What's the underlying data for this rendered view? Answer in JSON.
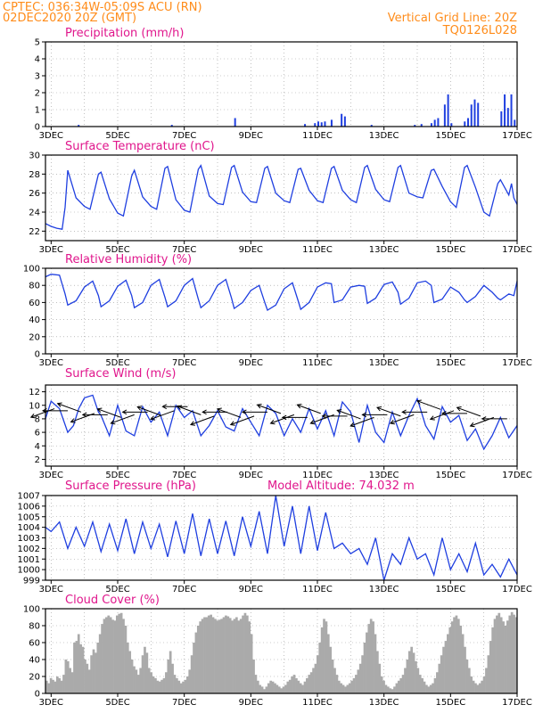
{
  "header": {
    "line1": "CPTEC:   036:34W-05:09S   ACU (RN)",
    "line2": "02DEC2020 20Z (GMT)",
    "grid_note": "Vertical Grid Line: 20Z",
    "code": "TQ0126L028"
  },
  "colors": {
    "header": "#ff8c1a",
    "title": "#e0168c",
    "series": "#1f3fe0",
    "cloud": "#aaaaaa",
    "grid": "#999999"
  },
  "x_axis_ticks": [
    "3DEC",
    "5DEC",
    "7DEC",
    "9DEC",
    "11DEC",
    "13DEC",
    "15DEC",
    "17DEC"
  ],
  "chart_data": [
    {
      "type": "bar",
      "title": "Precipitation (mm/h)",
      "ylim": [
        0,
        5
      ],
      "yticks": [
        0,
        1,
        2,
        3,
        4,
        5
      ],
      "grid": true,
      "x_unit": "days since 02DEC2020 00Z",
      "x": [
        3.8,
        6.6,
        8.5,
        10.6,
        10.9,
        11.0,
        11.1,
        11.2,
        11.4,
        11.7,
        11.8,
        12.6,
        13.9,
        14.1,
        14.4,
        14.5,
        14.6,
        14.8,
        14.9,
        15.0,
        15.4,
        15.5,
        15.6,
        15.7,
        15.8,
        16.5,
        16.6,
        16.7,
        16.8,
        16.9
      ],
      "values": [
        0.1,
        0.1,
        0.5,
        0.15,
        0.2,
        0.3,
        0.25,
        0.3,
        0.4,
        0.75,
        0.6,
        0.1,
        0.1,
        0.15,
        0.2,
        0.4,
        0.5,
        1.3,
        1.9,
        0.2,
        0.3,
        0.5,
        1.3,
        1.6,
        1.4,
        0.9,
        1.9,
        1.1,
        1.9,
        0.4
      ]
    },
    {
      "type": "line",
      "title": "Surface Temperature (nC)",
      "ylim": [
        21,
        30
      ],
      "yticks": [
        22,
        24,
        26,
        28,
        30
      ],
      "grid": true,
      "series": [
        {
          "x": [
            2.83,
            3.0,
            3.17,
            3.33,
            3.42,
            3.5,
            3.75,
            4.0,
            4.17,
            4.42,
            4.5,
            4.75,
            5.0,
            5.17,
            5.42,
            5.5,
            5.75,
            6.0,
            6.17,
            6.42,
            6.5,
            6.75,
            7.0,
            7.17,
            7.42,
            7.5,
            7.75,
            8.0,
            8.17,
            8.42,
            8.5,
            8.75,
            9.0,
            9.17,
            9.42,
            9.5,
            9.75,
            10.0,
            10.17,
            10.42,
            10.5,
            10.75,
            11.0,
            11.17,
            11.42,
            11.5,
            11.75,
            12.0,
            12.17,
            12.42,
            12.5,
            12.75,
            13.0,
            13.17,
            13.42,
            13.5,
            13.75,
            14.0,
            14.17,
            14.42,
            14.5,
            14.75,
            15.0,
            15.17,
            15.42,
            15.5,
            15.75,
            16.0,
            16.17,
            16.42,
            16.5,
            16.75,
            16.83,
            16.9,
            17.0
          ],
          "values": [
            22.8,
            22.5,
            22.3,
            22.2,
            24.5,
            28.4,
            25.5,
            24.6,
            24.3,
            28.0,
            28.2,
            25.4,
            23.9,
            23.6,
            27.8,
            28.4,
            25.6,
            24.6,
            24.3,
            28.6,
            28.8,
            25.3,
            24.2,
            24.0,
            28.5,
            28.9,
            25.7,
            24.9,
            24.8,
            28.7,
            28.9,
            26.1,
            25.1,
            25.0,
            28.6,
            28.8,
            26.0,
            25.2,
            25.0,
            28.5,
            28.6,
            26.3,
            25.2,
            25.0,
            28.6,
            28.8,
            26.3,
            25.3,
            25.0,
            28.7,
            28.9,
            26.4,
            25.3,
            25.1,
            28.7,
            28.9,
            26.0,
            25.6,
            25.5,
            28.4,
            28.5,
            26.7,
            25.1,
            24.5,
            28.7,
            28.9,
            26.6,
            24.0,
            23.6,
            27.0,
            27.4,
            25.8,
            27.0,
            25.5,
            24.8
          ]
        }
      ]
    },
    {
      "type": "line",
      "title": "Relative Humidity (%)",
      "ylim": [
        0,
        100
      ],
      "yticks": [
        0,
        20,
        40,
        60,
        80,
        100
      ],
      "grid": true,
      "series": [
        {
          "x": [
            2.83,
            3.0,
            3.25,
            3.42,
            3.5,
            3.75,
            4.0,
            4.25,
            4.42,
            4.5,
            4.75,
            5.0,
            5.25,
            5.42,
            5.5,
            5.75,
            6.0,
            6.25,
            6.42,
            6.5,
            6.75,
            7.0,
            7.25,
            7.42,
            7.5,
            7.75,
            8.0,
            8.25,
            8.42,
            8.5,
            8.75,
            9.0,
            9.25,
            9.42,
            9.5,
            9.75,
            10.0,
            10.25,
            10.42,
            10.5,
            10.75,
            11.0,
            11.25,
            11.42,
            11.5,
            11.75,
            12.0,
            12.25,
            12.42,
            12.5,
            12.75,
            13.0,
            13.25,
            13.42,
            13.5,
            13.75,
            14.0,
            14.25,
            14.42,
            14.5,
            14.75,
            15.0,
            15.25,
            15.42,
            15.5,
            15.75,
            16.0,
            16.25,
            16.42,
            16.5,
            16.75,
            16.9,
            17.0
          ],
          "values": [
            90,
            93,
            92,
            70,
            57,
            62,
            78,
            85,
            68,
            55,
            62,
            79,
            86,
            68,
            54,
            60,
            80,
            87,
            66,
            55,
            62,
            80,
            88,
            64,
            54,
            62,
            80,
            87,
            65,
            53,
            60,
            74,
            80,
            60,
            51,
            57,
            76,
            83,
            62,
            52,
            60,
            78,
            83,
            82,
            60,
            63,
            78,
            80,
            79,
            59,
            65,
            81,
            84,
            72,
            58,
            65,
            83,
            85,
            80,
            60,
            64,
            78,
            72,
            63,
            60,
            67,
            80,
            72,
            65,
            63,
            70,
            68,
            85
          ]
        }
      ]
    },
    {
      "type": "line",
      "title": "Surface Wind (m/s)",
      "ylim": [
        1,
        13
      ],
      "yticks": [
        2,
        4,
        6,
        8,
        10,
        12
      ],
      "grid": true,
      "series": [
        {
          "x": [
            2.83,
            3.0,
            3.25,
            3.5,
            3.67,
            3.83,
            4.0,
            4.25,
            4.42,
            4.5,
            4.75,
            5.0,
            5.25,
            5.5,
            5.75,
            6.0,
            6.25,
            6.5,
            6.75,
            7.0,
            7.25,
            7.5,
            7.75,
            8.0,
            8.25,
            8.5,
            8.75,
            9.0,
            9.25,
            9.5,
            9.75,
            10.0,
            10.25,
            10.5,
            10.75,
            11.0,
            11.25,
            11.5,
            11.75,
            12.0,
            12.25,
            12.5,
            12.75,
            13.0,
            13.25,
            13.5,
            13.75,
            14.0,
            14.25,
            14.5,
            14.75,
            15.0,
            15.25,
            15.5,
            15.75,
            16.0,
            16.25,
            16.5,
            16.75,
            17.0
          ],
          "values": [
            8,
            10.6,
            9.5,
            6,
            7,
            9.5,
            11.1,
            11.5,
            9,
            8.5,
            5.5,
            10,
            6.2,
            5.5,
            9.8,
            7.5,
            9,
            5.5,
            10,
            8.2,
            9.2,
            5.5,
            7,
            9.2,
            6.8,
            6.2,
            9.5,
            7.5,
            5.5,
            10,
            8.8,
            5.5,
            8,
            6,
            9.5,
            6.5,
            9.2,
            5.5,
            10.5,
            9,
            4.5,
            10,
            6,
            4.5,
            9,
            5.5,
            8.5,
            11,
            7,
            5,
            9.8,
            7.5,
            8.5,
            4.8,
            6.5,
            3.5,
            5.5,
            8.2,
            5.2,
            7
          ]
        }
      ],
      "wind_arrows_direction": "from east",
      "wind_arrow_days": [
        3.1,
        3.5,
        3.9,
        4.3,
        4.7,
        5.1,
        5.5,
        5.9,
        6.3,
        6.7,
        7.1,
        7.5,
        7.9,
        8.3,
        8.7,
        9.1,
        9.5,
        9.9,
        10.3,
        10.7,
        11.1,
        11.5,
        11.9,
        12.3,
        12.7,
        13.1,
        13.5,
        13.9,
        14.3,
        14.7,
        15.1,
        15.5,
        15.9,
        16.3,
        16.7
      ],
      "wind_arrow_values": [
        9.5,
        9.2,
        9.0,
        8.8,
        8.6,
        8.2,
        8.6,
        9.0,
        8.5,
        9.2,
        9.8,
        8.6,
        8.4,
        9.0,
        8.2,
        8.4,
        9.0,
        8.8,
        8.6,
        8.2,
        8.8,
        8.6,
        8.4,
        8.0,
        8.2,
        8.6,
        8.4,
        8.6,
        9.0,
        9.4,
        9.2,
        8.8,
        8.4,
        8.2,
        8.0
      ]
    },
    {
      "type": "line",
      "title": "Surface Pressure (hPa)",
      "annotation": "Model Altitude: 74.032 m",
      "ylim": [
        999,
        1007
      ],
      "yticks": [
        999,
        1000,
        1001,
        1002,
        1003,
        1004,
        1005,
        1006,
        1007
      ],
      "grid": true,
      "series": [
        {
          "x": [
            2.83,
            3.0,
            3.25,
            3.5,
            3.75,
            4.0,
            4.25,
            4.5,
            4.75,
            5.0,
            5.25,
            5.5,
            5.75,
            6.0,
            6.25,
            6.5,
            6.75,
            7.0,
            7.25,
            7.5,
            7.75,
            8.0,
            8.25,
            8.5,
            8.75,
            9.0,
            9.25,
            9.5,
            9.75,
            10.0,
            10.25,
            10.5,
            10.75,
            11.0,
            11.25,
            11.5,
            11.75,
            12.0,
            12.25,
            12.5,
            12.75,
            13.0,
            13.25,
            13.5,
            13.75,
            14.0,
            14.25,
            14.5,
            14.75,
            15.0,
            15.25,
            15.5,
            15.75,
            16.0,
            16.25,
            16.5,
            16.75,
            17.0
          ],
          "values": [
            1004,
            1003.6,
            1004.5,
            1002,
            1004,
            1002.2,
            1004.5,
            1001.7,
            1004.3,
            1001.8,
            1004.8,
            1001.5,
            1004.5,
            1002,
            1004.3,
            1001.2,
            1004.6,
            1001.5,
            1005.3,
            1001.3,
            1004.8,
            1001.5,
            1004.6,
            1001.3,
            1005,
            1002.2,
            1005.5,
            1001.5,
            1007,
            1002.2,
            1006,
            1001.5,
            1006,
            1001.8,
            1005.4,
            1002,
            1002.5,
            1001.5,
            1002,
            1000.5,
            1003,
            999,
            1001.5,
            1000.5,
            1003,
            1001,
            1001.5,
            999.5,
            1003,
            1000,
            1001.5,
            999.8,
            1002.5,
            999.5,
            1000.5,
            999.3,
            1001,
            999.5
          ]
        }
      ]
    },
    {
      "type": "bar",
      "title": "Cloud Cover (%)",
      "ylim": [
        0,
        100
      ],
      "yticks": [
        0,
        20,
        40,
        60,
        80,
        100
      ],
      "grid": true,
      "values": [
        15,
        12,
        18,
        16,
        14,
        20,
        18,
        15,
        22,
        40,
        38,
        30,
        25,
        60,
        62,
        70,
        58,
        55,
        40,
        35,
        28,
        45,
        52,
        48,
        60,
        70,
        82,
        88,
        90,
        92,
        90,
        87,
        86,
        92,
        94,
        95,
        88,
        80,
        60,
        50,
        40,
        32,
        28,
        22,
        30,
        45,
        55,
        48,
        30,
        25,
        20,
        18,
        15,
        14,
        16,
        18,
        25,
        40,
        50,
        35,
        22,
        18,
        15,
        12,
        14,
        16,
        20,
        28,
        45,
        60,
        72,
        80,
        85,
        88,
        90,
        90,
        92,
        93,
        90,
        88,
        86,
        87,
        88,
        90,
        92,
        91,
        89,
        86,
        88,
        90,
        86,
        88,
        92,
        95,
        92,
        85,
        70,
        40,
        22,
        15,
        10,
        8,
        5,
        8,
        12,
        15,
        14,
        12,
        10,
        8,
        6,
        8,
        10,
        14,
        16,
        20,
        22,
        18,
        15,
        12,
        10,
        14,
        18,
        22,
        25,
        30,
        35,
        45,
        60,
        78,
        88,
        85,
        70,
        55,
        40,
        30,
        22,
        15,
        12,
        10,
        8,
        10,
        12,
        15,
        18,
        22,
        28,
        35,
        45,
        60,
        72,
        82,
        88,
        85,
        70,
        50,
        35,
        20,
        15,
        10,
        8,
        6,
        5,
        8,
        12,
        15,
        18,
        22,
        30,
        40,
        50,
        55,
        48,
        38,
        30,
        22,
        18,
        14,
        10,
        8,
        10,
        12,
        18,
        25,
        35,
        45,
        55,
        62,
        70,
        78,
        85,
        90,
        92,
        88,
        80,
        70,
        55,
        40,
        30,
        20,
        15,
        12,
        10,
        12,
        15,
        20,
        30,
        45,
        62,
        78,
        88,
        92,
        95,
        90,
        85,
        80,
        86,
        92,
        96,
        93,
        90
      ]
    }
  ]
}
